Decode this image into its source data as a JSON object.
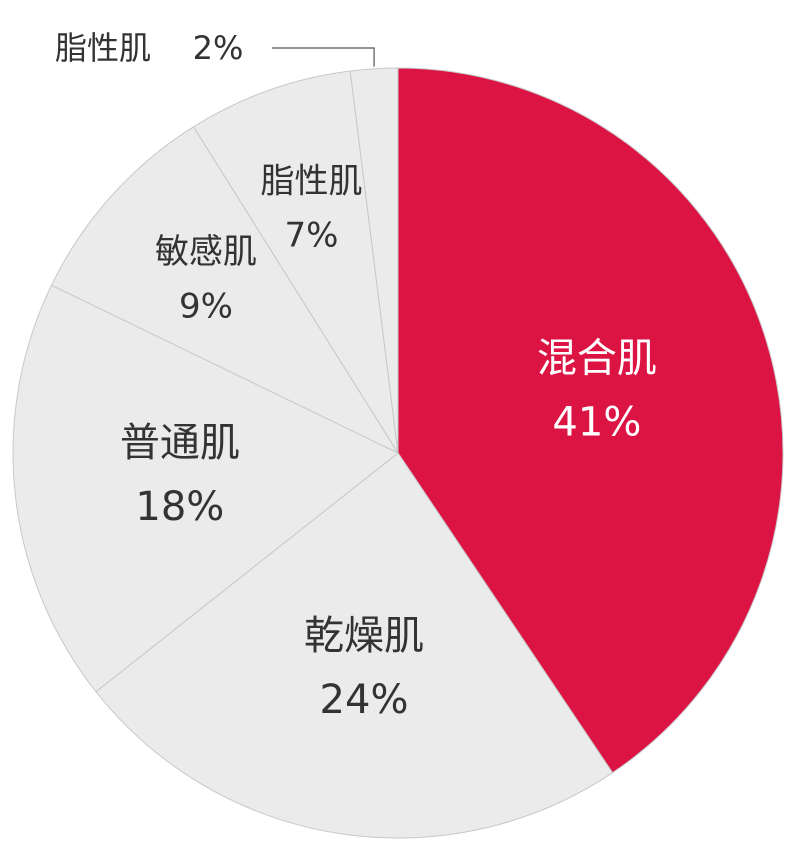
{
  "chart_data": {
    "type": "pie",
    "categories": [
      "混合肌",
      "乾燥肌",
      "普通肌",
      "敏感肌",
      "脂性肌",
      "脂性肌"
    ],
    "values": [
      41,
      24,
      18,
      9,
      7,
      2
    ],
    "value_labels": [
      "41%",
      "24%",
      "18%",
      "9%",
      "7%",
      "2%"
    ],
    "colors": [
      "#dc1443",
      "#ebebeb",
      "#ebebeb",
      "#ebebeb",
      "#ebebeb",
      "#ebebeb"
    ]
  }
}
